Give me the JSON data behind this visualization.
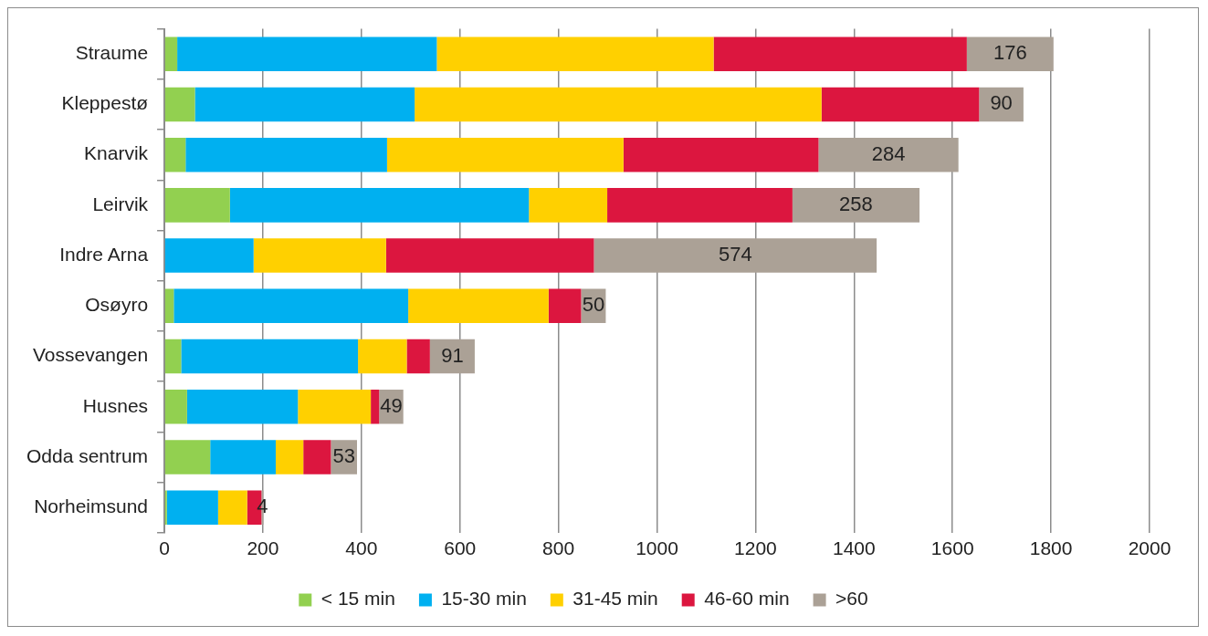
{
  "chart_data": {
    "type": "bar",
    "orientation": "horizontal",
    "stacked": true,
    "categories": [
      "Straume",
      "Kleppestø",
      "Knarvik",
      "Leirvik",
      "Indre Arna",
      "Osøyro",
      "Vossevangen",
      "Husnes",
      "Odda sentrum",
      "Norheimsund"
    ],
    "series": [
      {
        "name": "< 15 min",
        "color": "#92d050",
        "values": [
          26,
          62,
          43,
          133,
          null,
          19,
          34,
          46,
          93,
          5
        ]
      },
      {
        "name": "15-30 min",
        "color": "#00b0f0",
        "values": [
          527,
          446,
          409,
          607,
          181,
          476,
          359,
          225,
          133,
          104
        ]
      },
      {
        "name": "31-45 min",
        "color": "#ffd000",
        "values": [
          562,
          826,
          480,
          159,
          269,
          285,
          99,
          148,
          56,
          59
        ]
      },
      {
        "name": "46-60 min",
        "color": "#dc163f",
        "values": [
          514,
          320,
          396,
          376,
          422,
          66,
          47,
          17,
          56,
          29
        ]
      },
      {
        "name": ">60",
        "color": "#aba196",
        "values": [
          176,
          90,
          284,
          258,
          574,
          50,
          91,
          49,
          53,
          4
        ],
        "value_labels": [
          "176",
          "90",
          "284",
          "258",
          "574",
          "50",
          "91",
          "49",
          "53",
          "4"
        ]
      }
    ],
    "xlim": [
      0,
      2000
    ],
    "xticks": [
      0,
      200,
      400,
      600,
      800,
      1000,
      1200,
      1400,
      1600,
      1800,
      2000
    ],
    "grid": "x",
    "legend": "bottom"
  }
}
